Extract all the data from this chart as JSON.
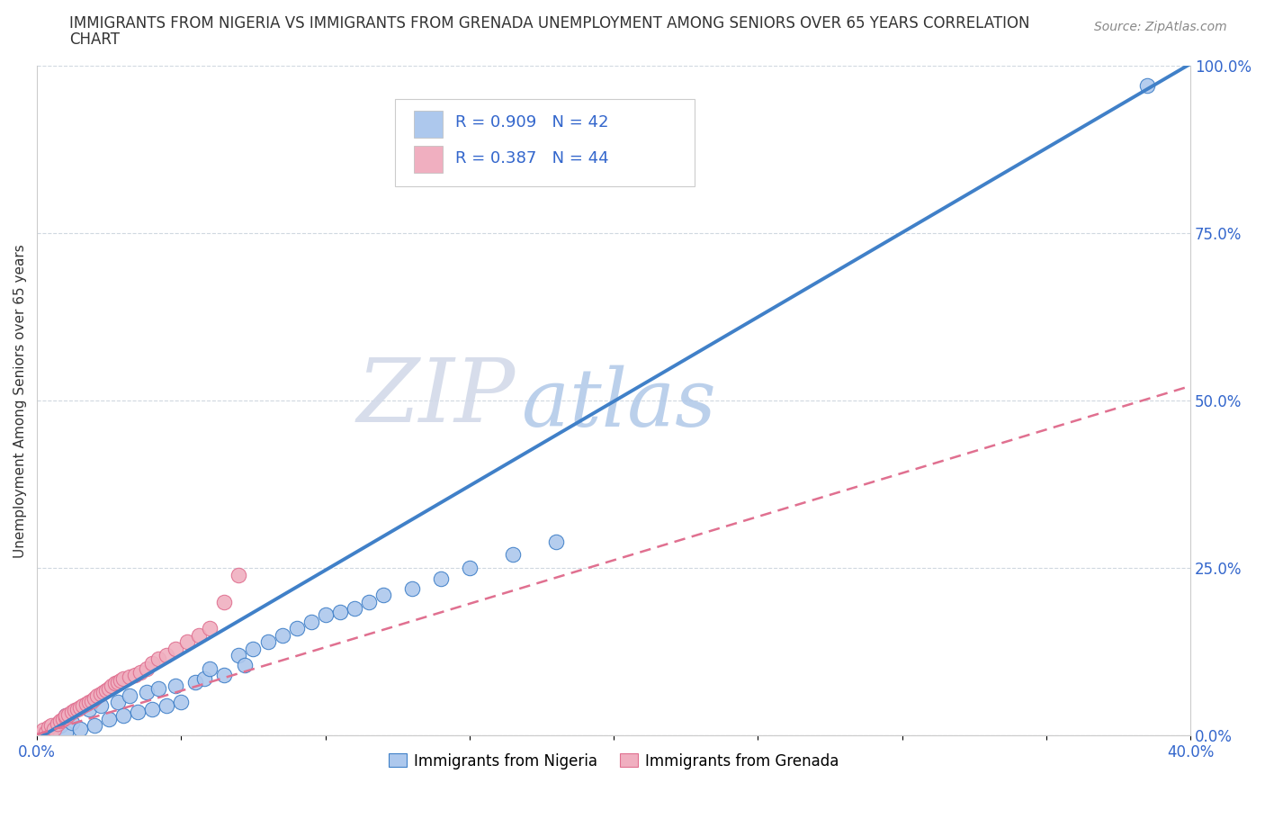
{
  "title_line1": "IMMIGRANTS FROM NIGERIA VS IMMIGRANTS FROM GRENADA UNEMPLOYMENT AMONG SENIORS OVER 65 YEARS CORRELATION",
  "title_line2": "CHART",
  "source": "Source: ZipAtlas.com",
  "ylabel": "Unemployment Among Seniors over 65 years",
  "r_nigeria": 0.909,
  "n_nigeria": 42,
  "r_grenada": 0.387,
  "n_grenada": 44,
  "nigeria_color": "#adc8ed",
  "grenada_color": "#f0afc0",
  "nigeria_line_color": "#4080c8",
  "grenada_line_color": "#e07090",
  "background_color": "#ffffff",
  "xlim": [
    0,
    0.4
  ],
  "ylim": [
    0,
    1.0
  ],
  "yticks_right": [
    0.0,
    0.25,
    0.5,
    0.75,
    1.0
  ],
  "ytick_labels_right": [
    "0.0%",
    "25.0%",
    "50.0%",
    "75.0%",
    "100.0%"
  ],
  "nigeria_line_slope": 2.52,
  "nigeria_line_intercept": -0.005,
  "grenada_line_slope": 1.3,
  "grenada_line_intercept": 0.002,
  "nigeria_x": [
    0.005,
    0.008,
    0.01,
    0.012,
    0.01,
    0.015,
    0.018,
    0.02,
    0.022,
    0.025,
    0.028,
    0.03,
    0.032,
    0.035,
    0.038,
    0.04,
    0.042,
    0.045,
    0.048,
    0.05,
    0.055,
    0.058,
    0.06,
    0.065,
    0.07,
    0.072,
    0.075,
    0.08,
    0.085,
    0.09,
    0.095,
    0.1,
    0.105,
    0.11,
    0.115,
    0.12,
    0.13,
    0.14,
    0.15,
    0.165,
    0.18,
    0.385
  ],
  "nigeria_y": [
    0.005,
    0.015,
    0.005,
    0.02,
    0.03,
    0.01,
    0.04,
    0.015,
    0.045,
    0.025,
    0.05,
    0.03,
    0.06,
    0.035,
    0.065,
    0.04,
    0.07,
    0.045,
    0.075,
    0.05,
    0.08,
    0.085,
    0.1,
    0.09,
    0.12,
    0.105,
    0.13,
    0.14,
    0.15,
    0.16,
    0.17,
    0.18,
    0.185,
    0.19,
    0.2,
    0.21,
    0.22,
    0.235,
    0.25,
    0.27,
    0.29,
    0.97
  ],
  "grenada_x": [
    0.001,
    0.002,
    0.003,
    0.004,
    0.005,
    0.006,
    0.007,
    0.008,
    0.009,
    0.01,
    0.01,
    0.011,
    0.012,
    0.013,
    0.014,
    0.015,
    0.016,
    0.017,
    0.018,
    0.019,
    0.02,
    0.021,
    0.022,
    0.023,
    0.024,
    0.025,
    0.026,
    0.027,
    0.028,
    0.029,
    0.03,
    0.032,
    0.034,
    0.036,
    0.038,
    0.04,
    0.042,
    0.045,
    0.048,
    0.052,
    0.056,
    0.06,
    0.065,
    0.07
  ],
  "grenada_y": [
    0.002,
    0.008,
    0.005,
    0.012,
    0.015,
    0.01,
    0.018,
    0.022,
    0.025,
    0.028,
    0.03,
    0.032,
    0.035,
    0.038,
    0.04,
    0.042,
    0.045,
    0.048,
    0.05,
    0.052,
    0.055,
    0.06,
    0.062,
    0.065,
    0.068,
    0.07,
    0.075,
    0.078,
    0.08,
    0.082,
    0.085,
    0.088,
    0.09,
    0.095,
    0.1,
    0.108,
    0.115,
    0.12,
    0.13,
    0.14,
    0.15,
    0.16,
    0.2,
    0.24
  ]
}
